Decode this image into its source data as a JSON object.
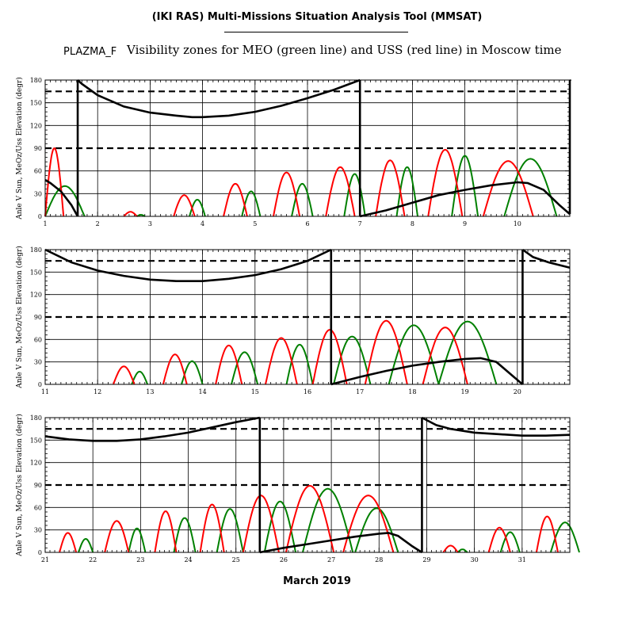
{
  "header": {
    "tool_title": "(IKI RAS) Multi-Missions Situation Analysis Tool (MMSAT)",
    "plot_id": "PLAZMA_F",
    "plot_title": "Visibility zones for MEO (green line) and USS (red line) in Moscow time"
  },
  "footer": {
    "month_label": "March 2019"
  },
  "colors": {
    "sun_angle": "#000000",
    "meo": "#008000",
    "uss": "#ff0000",
    "threshold": "#000000",
    "grid": "#000000"
  },
  "chart_data": [
    {
      "type": "line",
      "panel": 1,
      "xlim": [
        1,
        11
      ],
      "ylim": [
        0,
        180
      ],
      "xticks": [
        1,
        2,
        3,
        4,
        5,
        6,
        7,
        8,
        9,
        10
      ],
      "yticks": [
        0,
        30,
        60,
        90,
        120,
        150,
        180
      ],
      "ylabel": "Anle V Sun, MeOz/Uss Elevation (degr)",
      "grid": true,
      "thresholds": [
        90,
        165
      ],
      "sun_angle": [
        [
          [
            1.0,
            48
          ],
          [
            1.1,
            44
          ],
          [
            1.3,
            33
          ],
          [
            1.5,
            15
          ],
          [
            1.62,
            0
          ]
        ],
        [
          [
            1.62,
            180
          ],
          [
            1.7,
            175
          ],
          [
            2.0,
            160
          ],
          [
            2.5,
            145
          ],
          [
            3.0,
            137
          ],
          [
            3.5,
            133
          ],
          [
            3.8,
            131
          ],
          [
            4.0,
            131
          ],
          [
            4.5,
            133
          ],
          [
            5.0,
            138
          ],
          [
            5.5,
            146
          ],
          [
            6.0,
            156
          ],
          [
            6.5,
            167
          ],
          [
            7.0,
            180
          ]
        ],
        [
          [
            7.0,
            0
          ],
          [
            7.5,
            8
          ],
          [
            8.0,
            18
          ],
          [
            8.5,
            28
          ],
          [
            9.0,
            35
          ],
          [
            9.5,
            41
          ],
          [
            10.0,
            45
          ],
          [
            10.2,
            44
          ],
          [
            10.5,
            35
          ],
          [
            10.8,
            15
          ],
          [
            11.0,
            3
          ]
        ],
        [
          [
            11.0,
            180
          ],
          [
            11.02,
            179
          ]
        ]
      ],
      "meo_passes": [
        [
          1.0,
          1.75,
          40
        ],
        [
          2.75,
          2.9,
          2
        ],
        [
          3.75,
          4.05,
          22
        ],
        [
          4.75,
          5.1,
          33
        ],
        [
          5.7,
          6.1,
          43
        ],
        [
          6.7,
          7.1,
          56
        ],
        [
          7.7,
          8.1,
          65
        ],
        [
          8.75,
          9.25,
          80
        ],
        [
          9.75,
          10.75,
          76
        ]
      ],
      "uss_passes": [
        [
          1.0,
          1.35,
          90
        ],
        [
          2.5,
          2.75,
          6
        ],
        [
          3.45,
          3.85,
          28
        ],
        [
          4.4,
          4.85,
          43
        ],
        [
          5.35,
          5.85,
          58
        ],
        [
          6.35,
          6.9,
          65
        ],
        [
          7.3,
          7.85,
          74
        ],
        [
          8.3,
          8.95,
          88
        ],
        [
          9.35,
          10.3,
          73
        ]
      ]
    },
    {
      "type": "line",
      "panel": 2,
      "xlim": [
        11,
        21
      ],
      "ylim": [
        0,
        180
      ],
      "xticks": [
        11,
        12,
        13,
        14,
        15,
        16,
        17,
        18,
        19,
        20
      ],
      "yticks": [
        0,
        30,
        60,
        90,
        120,
        150,
        180
      ],
      "ylabel": "Anle V Sun, MeOz/Uss Elevation (degr)",
      "grid": true,
      "thresholds": [
        90,
        165
      ],
      "sun_angle": [
        [
          [
            11.0,
            180
          ],
          [
            11.5,
            163
          ],
          [
            12.0,
            152
          ],
          [
            12.5,
            145
          ],
          [
            13.0,
            140
          ],
          [
            13.5,
            138
          ],
          [
            14.0,
            138
          ],
          [
            14.5,
            141
          ],
          [
            15.0,
            146
          ],
          [
            15.5,
            154
          ],
          [
            16.0,
            165
          ],
          [
            16.45,
            180
          ]
        ],
        [
          [
            16.45,
            0
          ],
          [
            17.0,
            10
          ],
          [
            17.5,
            18
          ],
          [
            18.0,
            25
          ],
          [
            18.5,
            30
          ],
          [
            19.0,
            34
          ],
          [
            19.3,
            35
          ],
          [
            19.6,
            30
          ],
          [
            19.9,
            12
          ],
          [
            20.1,
            0
          ]
        ],
        [
          [
            20.1,
            180
          ],
          [
            20.3,
            170
          ],
          [
            20.6,
            163
          ],
          [
            21.0,
            156
          ]
        ]
      ],
      "meo_passes": [
        [
          12.65,
          12.95,
          17
        ],
        [
          13.6,
          14.0,
          31
        ],
        [
          14.55,
          15.05,
          43
        ],
        [
          15.6,
          16.1,
          53
        ],
        [
          16.5,
          17.2,
          64
        ],
        [
          17.55,
          18.5,
          79
        ],
        [
          18.5,
          19.6,
          84
        ]
      ],
      "uss_passes": [
        [
          12.3,
          12.7,
          24
        ],
        [
          13.25,
          13.7,
          40
        ],
        [
          14.25,
          14.75,
          52
        ],
        [
          15.2,
          15.8,
          62
        ],
        [
          16.1,
          16.75,
          73
        ],
        [
          17.1,
          17.9,
          85
        ],
        [
          18.2,
          19.05,
          76
        ]
      ]
    },
    {
      "type": "line",
      "panel": 3,
      "xlim": [
        21,
        32
      ],
      "ylim": [
        0,
        180
      ],
      "xticks": [
        21,
        22,
        23,
        24,
        25,
        26,
        27,
        28,
        29,
        30,
        31
      ],
      "yticks": [
        0,
        30,
        60,
        90,
        120,
        150,
        180
      ],
      "ylabel": "Anle V Sun, MeOz/Uss Elevation (degr)",
      "grid": true,
      "thresholds": [
        90,
        165
      ],
      "sun_angle": [
        [
          [
            21.0,
            155
          ],
          [
            21.5,
            151
          ],
          [
            22.0,
            149
          ],
          [
            22.5,
            149
          ],
          [
            23.0,
            151
          ],
          [
            23.5,
            155
          ],
          [
            24.0,
            160
          ],
          [
            24.5,
            167
          ],
          [
            25.0,
            174
          ],
          [
            25.5,
            180
          ]
        ],
        [
          [
            25.5,
            0
          ],
          [
            26.0,
            6
          ],
          [
            26.5,
            11
          ],
          [
            27.0,
            16
          ],
          [
            27.5,
            21
          ],
          [
            28.0,
            25
          ],
          [
            28.2,
            26
          ],
          [
            28.4,
            22
          ],
          [
            28.7,
            8
          ],
          [
            28.9,
            0
          ]
        ],
        [
          [
            28.9,
            180
          ],
          [
            29.2,
            170
          ],
          [
            29.5,
            165
          ],
          [
            30.0,
            160
          ],
          [
            30.5,
            158
          ],
          [
            31.0,
            156
          ],
          [
            31.5,
            156
          ],
          [
            32.0,
            157
          ]
        ]
      ],
      "meo_passes": [
        [
          21.7,
          22.0,
          18
        ],
        [
          22.75,
          23.1,
          32
        ],
        [
          23.7,
          24.15,
          46
        ],
        [
          24.6,
          25.15,
          58
        ],
        [
          25.6,
          26.25,
          68
        ],
        [
          26.4,
          27.45,
          85
        ],
        [
          27.5,
          28.4,
          59
        ],
        [
          29.65,
          29.85,
          4
        ],
        [
          30.55,
          30.95,
          27
        ],
        [
          31.6,
          32.2,
          40
        ]
      ],
      "uss_passes": [
        [
          21.3,
          21.65,
          26
        ],
        [
          22.25,
          22.75,
          42
        ],
        [
          23.3,
          23.75,
          55
        ],
        [
          24.25,
          24.75,
          64
        ],
        [
          25.15,
          25.9,
          76
        ],
        [
          26.05,
          27.05,
          89
        ],
        [
          27.25,
          28.3,
          76
        ],
        [
          29.35,
          29.65,
          9
        ],
        [
          30.3,
          30.75,
          33
        ],
        [
          31.3,
          31.75,
          48
        ]
      ]
    }
  ]
}
